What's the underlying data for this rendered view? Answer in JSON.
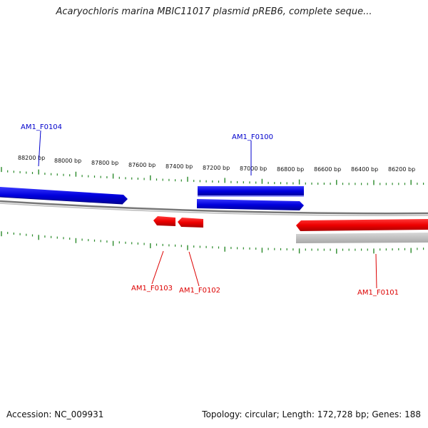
{
  "header": {
    "title": "Acaryochloris marina MBIC11017 plasmid pREB6, complete seque..."
  },
  "footer": {
    "accession": "Accession: NC_009931",
    "summary": "Topology: circular; Length: 172,728 bp; Genes: 188"
  },
  "ruler": {
    "tick_labels": [
      "88200 bp",
      "88000 bp",
      "87800 bp",
      "87600 bp",
      "87400 bp",
      "87200 bp",
      "87000 bp",
      "86800 bp",
      "86600 bp",
      "86400 bp",
      "86200 bp"
    ]
  },
  "genes": [
    {
      "id": "AM1_F0104",
      "strand": "forward",
      "color": "#0000cc"
    },
    {
      "id": "AM1_F0100",
      "strand": "forward",
      "color": "#0000cc"
    },
    {
      "id": "AM1_F0103",
      "strand": "reverse",
      "color": "#dd0000"
    },
    {
      "id": "AM1_F0102",
      "strand": "reverse",
      "color": "#dd0000"
    },
    {
      "id": "AM1_F0101",
      "strand": "reverse",
      "color": "#dd0000"
    }
  ],
  "colors": {
    "forward": "#0000ee",
    "reverse": "#ff0000",
    "ruler_ticks": "#2a8a2a",
    "backbone": "#888888"
  }
}
